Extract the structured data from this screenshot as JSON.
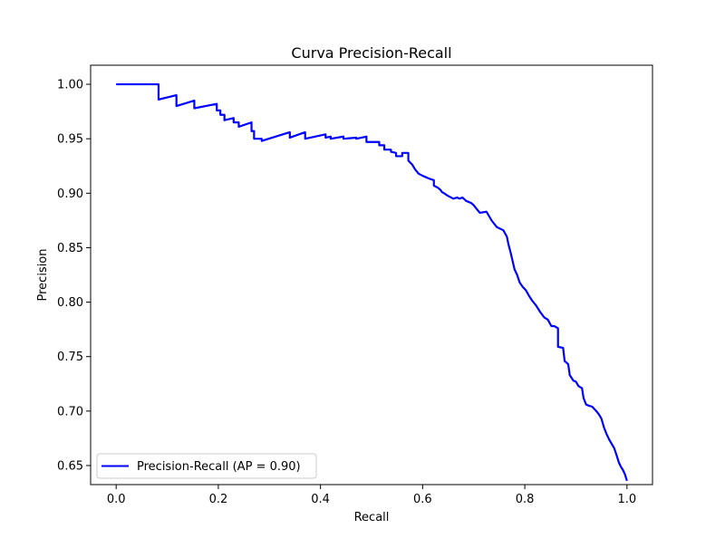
{
  "chart_data": {
    "type": "line",
    "title": "Curva Precision-Recall",
    "xlabel": "Recall",
    "ylabel": "Precision",
    "xlim": [
      -0.05,
      1.05
    ],
    "ylim": [
      0.6325,
      1.0175
    ],
    "xticks": [
      0.0,
      0.2,
      0.4,
      0.6,
      0.8,
      1.0
    ],
    "xtick_labels": [
      "0.0",
      "0.2",
      "0.4",
      "0.6",
      "0.8",
      "1.0"
    ],
    "yticks": [
      0.65,
      0.7,
      0.75,
      0.8,
      0.85,
      0.9,
      0.95,
      1.0
    ],
    "ytick_labels": [
      "0.65",
      "0.70",
      "0.75",
      "0.80",
      "0.85",
      "0.90",
      "0.95",
      "1.00"
    ],
    "grid": false,
    "legend_position": "lower-left",
    "series": [
      {
        "name": "Precision-Recall (AP = 0.90)",
        "color": "#0000ff",
        "x": [
          0.0,
          0.083,
          0.083,
          0.118,
          0.118,
          0.153,
          0.153,
          0.197,
          0.197,
          0.204,
          0.204,
          0.212,
          0.212,
          0.23,
          0.23,
          0.24,
          0.24,
          0.265,
          0.265,
          0.27,
          0.27,
          0.285,
          0.285,
          0.34,
          0.34,
          0.37,
          0.37,
          0.41,
          0.41,
          0.42,
          0.42,
          0.445,
          0.445,
          0.47,
          0.47,
          0.49,
          0.49,
          0.515,
          0.515,
          0.525,
          0.525,
          0.538,
          0.538,
          0.548,
          0.548,
          0.56,
          0.56,
          0.572,
          0.572,
          0.58,
          0.585,
          0.592,
          0.6,
          0.61,
          0.615,
          0.622,
          0.622,
          0.63,
          0.635,
          0.638,
          0.642,
          0.648,
          0.652,
          0.66,
          0.668,
          0.672,
          0.678,
          0.685,
          0.69,
          0.695,
          0.7,
          0.705,
          0.712,
          0.725,
          0.735,
          0.745,
          0.758,
          0.765,
          0.768,
          0.772,
          0.776,
          0.78,
          0.785,
          0.79,
          0.796,
          0.802,
          0.808,
          0.815,
          0.822,
          0.83,
          0.838,
          0.845,
          0.852,
          0.858,
          0.865,
          0.865,
          0.875,
          0.878,
          0.885,
          0.888,
          0.895,
          0.9,
          0.905,
          0.912,
          0.915,
          0.92,
          0.925,
          0.932,
          0.94,
          0.945,
          0.95,
          0.955,
          0.96,
          0.965,
          0.97,
          0.975,
          0.98,
          0.984,
          0.988,
          0.992,
          0.996,
          1.0
        ],
        "y": [
          1.0,
          1.0,
          0.986,
          0.99,
          0.98,
          0.985,
          0.978,
          0.982,
          0.976,
          0.976,
          0.972,
          0.972,
          0.967,
          0.969,
          0.965,
          0.965,
          0.961,
          0.965,
          0.957,
          0.957,
          0.95,
          0.95,
          0.948,
          0.956,
          0.951,
          0.956,
          0.95,
          0.954,
          0.951,
          0.952,
          0.95,
          0.952,
          0.95,
          0.951,
          0.95,
          0.952,
          0.947,
          0.947,
          0.944,
          0.944,
          0.94,
          0.94,
          0.938,
          0.937,
          0.934,
          0.934,
          0.937,
          0.937,
          0.93,
          0.926,
          0.922,
          0.918,
          0.916,
          0.914,
          0.913,
          0.912,
          0.907,
          0.905,
          0.903,
          0.901,
          0.9,
          0.898,
          0.897,
          0.895,
          0.896,
          0.895,
          0.896,
          0.893,
          0.892,
          0.891,
          0.889,
          0.886,
          0.882,
          0.883,
          0.875,
          0.869,
          0.866,
          0.86,
          0.853,
          0.846,
          0.838,
          0.83,
          0.825,
          0.818,
          0.814,
          0.811,
          0.806,
          0.801,
          0.797,
          0.791,
          0.786,
          0.784,
          0.778,
          0.778,
          0.776,
          0.759,
          0.758,
          0.746,
          0.743,
          0.733,
          0.728,
          0.727,
          0.723,
          0.721,
          0.712,
          0.706,
          0.705,
          0.704,
          0.7,
          0.697,
          0.693,
          0.685,
          0.679,
          0.674,
          0.67,
          0.666,
          0.659,
          0.653,
          0.649,
          0.646,
          0.642,
          0.636
        ]
      }
    ]
  }
}
